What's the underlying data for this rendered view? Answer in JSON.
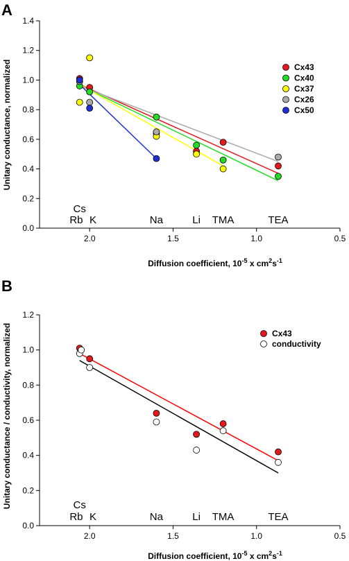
{
  "chart_data": [
    {
      "type": "scatter",
      "panel_label": "A",
      "xlabel_main": "Diffusion coefficient, 10",
      "xlabel_sup1": "-5",
      "xlabel_mid": " x cm",
      "xlabel_sup2": "2",
      "xlabel_mid2": "s",
      "xlabel_sup3": "-1",
      "ylabel": "Unitary conductance, normalized",
      "xlim": [
        2.3,
        0.5
      ],
      "ylim": [
        0.0,
        1.4
      ],
      "x_reversed": true,
      "xticks": [
        {
          "v": 2.0,
          "label": "2.0"
        },
        {
          "v": 1.5,
          "label": "1.5"
        },
        {
          "v": 1.0,
          "label": "1.0"
        },
        {
          "v": 0.5,
          "label": "0.5"
        }
      ],
      "yticks": [
        {
          "v": 0.0,
          "label": "0.0"
        },
        {
          "v": 0.2,
          "label": "0.2"
        },
        {
          "v": 0.4,
          "label": "0.4"
        },
        {
          "v": 0.6,
          "label": "0.6"
        },
        {
          "v": 0.8,
          "label": "0.8"
        },
        {
          "v": 1.0,
          "label": "1.0"
        },
        {
          "v": 1.2,
          "label": "1.2"
        },
        {
          "v": 1.4,
          "label": "1.4"
        }
      ],
      "ion_labels": [
        {
          "text": "Cs",
          "x": 2.06,
          "row": 0
        },
        {
          "text": "Rb",
          "x": 2.08,
          "row": 1
        },
        {
          "text": "K",
          "x": 1.98,
          "row": 1
        },
        {
          "text": "Na",
          "x": 1.6,
          "row": 1
        },
        {
          "text": "Li",
          "x": 1.36,
          "row": 1
        },
        {
          "text": "TMA",
          "x": 1.2,
          "row": 1
        },
        {
          "text": "TEA",
          "x": 0.87,
          "row": 1
        }
      ],
      "legend": {
        "placement": "right"
      },
      "series": [
        {
          "name": "Cx43",
          "color": "#e31a1c",
          "points": [
            [
              2.06,
              1.01
            ],
            [
              2.0,
              0.95
            ],
            [
              1.6,
              0.64
            ],
            [
              1.36,
              0.52
            ],
            [
              1.2,
              0.58
            ],
            [
              0.87,
              0.42
            ]
          ],
          "fit": [
            [
              2.06,
              0.97
            ],
            [
              0.87,
              0.37
            ]
          ]
        },
        {
          "name": "Cx40",
          "color": "#22dd22",
          "points": [
            [
              2.06,
              0.96
            ],
            [
              2.0,
              0.92
            ],
            [
              1.6,
              0.75
            ],
            [
              1.36,
              0.56
            ],
            [
              1.2,
              0.46
            ],
            [
              0.87,
              0.35
            ]
          ],
          "fit": [
            [
              2.06,
              0.965
            ],
            [
              0.87,
              0.32
            ]
          ]
        },
        {
          "name": "Cx37",
          "color": "#ffff00",
          "points": [
            [
              2.06,
              0.85
            ],
            [
              2.0,
              1.15
            ],
            [
              1.6,
              0.62
            ],
            [
              1.36,
              0.5
            ],
            [
              1.2,
              0.4
            ]
          ],
          "fit": [
            [
              2.06,
              0.97
            ],
            [
              1.2,
              0.42
            ]
          ]
        },
        {
          "name": "Cx26",
          "color": "#aaaaaa",
          "points": [
            [
              2.06,
              0.99
            ],
            [
              2.0,
              0.85
            ],
            [
              1.6,
              0.65
            ],
            [
              0.87,
              0.48
            ]
          ],
          "fit": [
            [
              2.06,
              0.96
            ],
            [
              0.87,
              0.45
            ]
          ]
        },
        {
          "name": "Cx50",
          "color": "#1f2fd6",
          "points": [
            [
              2.06,
              1.0
            ],
            [
              2.0,
              0.81
            ],
            [
              1.6,
              0.47
            ]
          ],
          "fit": [
            [
              2.06,
              0.97
            ],
            [
              1.6,
              0.47
            ]
          ]
        }
      ]
    },
    {
      "type": "scatter",
      "panel_label": "B",
      "xlabel_main": "Diffusion coefficient, 10",
      "xlabel_sup1": "-5",
      "xlabel_mid": " x cm",
      "xlabel_sup2": "2",
      "xlabel_mid2": "s",
      "xlabel_sup3": "-1",
      "ylabel": "Unitary conductance / conductivity, normalized",
      "xlim": [
        2.3,
        0.5
      ],
      "ylim": [
        0.0,
        1.2
      ],
      "x_reversed": true,
      "xticks": [
        {
          "v": 2.0,
          "label": "2.0"
        },
        {
          "v": 1.5,
          "label": "1.5"
        },
        {
          "v": 1.0,
          "label": "1.0"
        },
        {
          "v": 0.5,
          "label": "0.5"
        }
      ],
      "yticks": [
        {
          "v": 0.0,
          "label": "0.0"
        },
        {
          "v": 0.2,
          "label": "0.2"
        },
        {
          "v": 0.4,
          "label": "0.4"
        },
        {
          "v": 0.6,
          "label": "0.6"
        },
        {
          "v": 0.8,
          "label": "0.8"
        },
        {
          "v": 1.0,
          "label": "1.0"
        },
        {
          "v": 1.2,
          "label": "1.2"
        }
      ],
      "ion_labels": [
        {
          "text": "Cs",
          "x": 2.06,
          "row": 0
        },
        {
          "text": "Rb",
          "x": 2.08,
          "row": 1
        },
        {
          "text": "K",
          "x": 1.98,
          "row": 1
        },
        {
          "text": "Na",
          "x": 1.6,
          "row": 1
        },
        {
          "text": "Li",
          "x": 1.36,
          "row": 1
        },
        {
          "text": "TMA",
          "x": 1.2,
          "row": 1
        },
        {
          "text": "TEA",
          "x": 0.87,
          "row": 1
        }
      ],
      "legend": {
        "placement": "top-right"
      },
      "series": [
        {
          "name": "Cx43",
          "color": "#e31a1c",
          "points": [
            [
              2.06,
              1.01
            ],
            [
              2.0,
              0.95
            ],
            [
              1.6,
              0.64
            ],
            [
              1.36,
              0.52
            ],
            [
              1.2,
              0.58
            ],
            [
              0.87,
              0.42
            ]
          ],
          "fit": [
            [
              2.06,
              0.98
            ],
            [
              0.87,
              0.37
            ]
          ],
          "fit_color": "#ff0000"
        },
        {
          "name": "conductivity",
          "color": "#ffffff",
          "points": [
            [
              2.06,
              0.98
            ],
            [
              2.05,
              1.0
            ],
            [
              2.0,
              0.9
            ],
            [
              1.6,
              0.59
            ],
            [
              1.36,
              0.43
            ],
            [
              1.2,
              0.54
            ],
            [
              0.87,
              0.36
            ]
          ],
          "fit": [
            [
              2.06,
              0.94
            ],
            [
              0.87,
              0.3
            ]
          ],
          "fit_color": "#000000"
        }
      ]
    }
  ]
}
